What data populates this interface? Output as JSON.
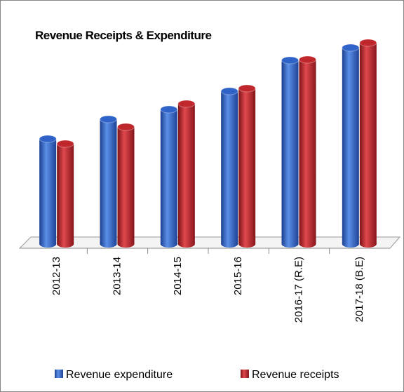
{
  "chart_data": {
    "type": "bar",
    "title": "Revenue Receipts & Expenditure",
    "categories": [
      "2012-13",
      "2013-14",
      "2014-15",
      "2015-16",
      "2016-17 (R.E)",
      "2017-18 (B.E)"
    ],
    "series": [
      {
        "name": "Revenue expenditure",
        "color": "#2f63c8",
        "values": [
          150,
          178,
          192,
          218,
          262,
          280
        ]
      },
      {
        "name": "Revenue receipts",
        "color": "#c0272d",
        "values": [
          143,
          167,
          200,
          222,
          263,
          287
        ]
      }
    ],
    "ylim": [
      0,
      300
    ],
    "legend": "bottom"
  }
}
